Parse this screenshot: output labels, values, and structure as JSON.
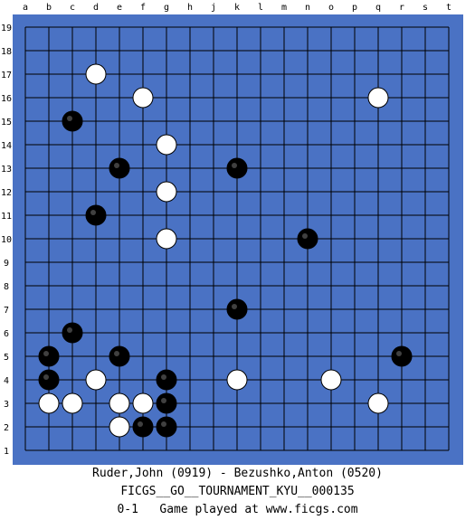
{
  "board": {
    "size": 19,
    "columns": [
      "a",
      "b",
      "c",
      "d",
      "e",
      "f",
      "g",
      "h",
      "j",
      "k",
      "l",
      "m",
      "n",
      "o",
      "p",
      "q",
      "r",
      "s",
      "t"
    ],
    "rows": [
      "19",
      "18",
      "17",
      "16",
      "15",
      "14",
      "13",
      "12",
      "11",
      "10",
      "9",
      "8",
      "7",
      "6",
      "5",
      "4",
      "3",
      "2",
      "1"
    ],
    "colors": {
      "board": "#4a72c4",
      "grid": "#000000",
      "black_stone": "#000000",
      "white_stone": "#ffffff"
    },
    "stones": {
      "black": [
        "c15",
        "e13",
        "k13",
        "d11",
        "n10",
        "k7",
        "c6",
        "b5",
        "e5",
        "r5",
        "b4",
        "g4",
        "g3",
        "f2",
        "g2"
      ],
      "white": [
        "d17",
        "f16",
        "q16",
        "g14",
        "g12",
        "g10",
        "d4",
        "k4",
        "o4",
        "b3",
        "c3",
        "e3",
        "f3",
        "q3",
        "e2"
      ]
    }
  },
  "game": {
    "players": "Ruder,John (0919) - Bezushko,Anton (0520)",
    "event": "FICGS__GO__TOURNAMENT_KYU__000135",
    "result_line": "0-1   Game played at www.ficgs.com"
  }
}
